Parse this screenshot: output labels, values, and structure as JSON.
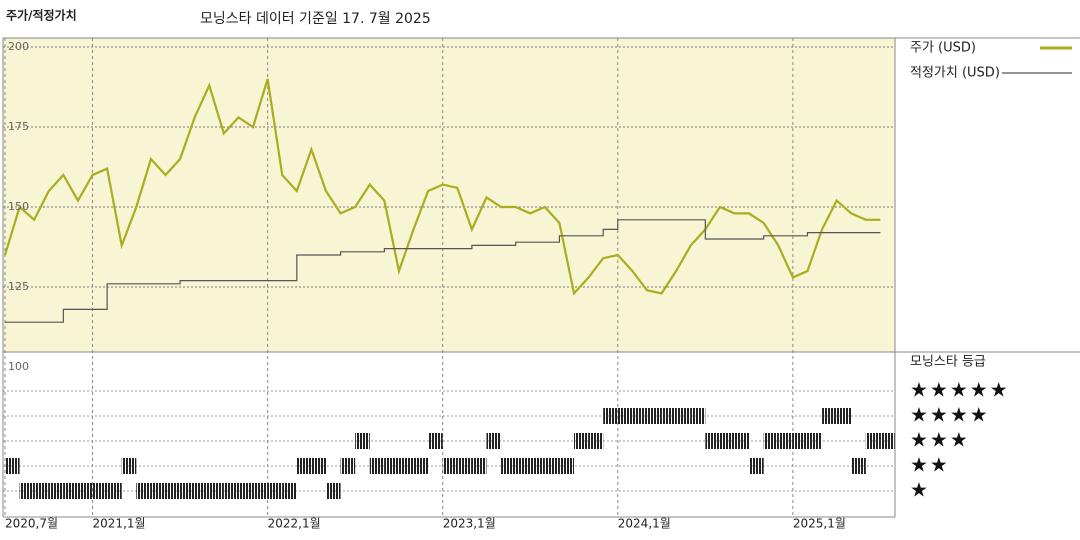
{
  "header": {
    "title": "주가/적정가치",
    "subtitle": "모닝스타 데이터 기준일 17. 7월 2025"
  },
  "chart_data": {
    "type": "line",
    "x": [
      "2020-07",
      "2020-08",
      "2020-09",
      "2020-10",
      "2020-11",
      "2020-12",
      "2021-01",
      "2021-02",
      "2021-03",
      "2021-04",
      "2021-05",
      "2021-06",
      "2021-07",
      "2021-08",
      "2021-09",
      "2021-10",
      "2021-11",
      "2021-12",
      "2022-01",
      "2022-02",
      "2022-03",
      "2022-04",
      "2022-05",
      "2022-06",
      "2022-07",
      "2022-08",
      "2022-09",
      "2022-10",
      "2022-11",
      "2022-12",
      "2023-01",
      "2023-02",
      "2023-03",
      "2023-04",
      "2023-05",
      "2023-06",
      "2023-07",
      "2023-08",
      "2023-09",
      "2023-10",
      "2023-11",
      "2023-12",
      "2024-01",
      "2024-02",
      "2024-03",
      "2024-04",
      "2024-05",
      "2024-06",
      "2024-07",
      "2024-08",
      "2024-09",
      "2024-10",
      "2024-11",
      "2024-12",
      "2025-01",
      "2025-02",
      "2025-03",
      "2025-04",
      "2025-05",
      "2025-06",
      "2025-07"
    ],
    "xlim": [
      "2020-07",
      "2025-08"
    ],
    "xticks": [
      {
        "value": "2020-07",
        "label": "2020,7월"
      },
      {
        "value": "2021-01",
        "label": "2021,1월"
      },
      {
        "value": "2022-01",
        "label": "2022,1월"
      },
      {
        "value": "2023-01",
        "label": "2023,1월"
      },
      {
        "value": "2024-01",
        "label": "2024,1월"
      },
      {
        "value": "2025-01",
        "label": "2025,1월"
      }
    ],
    "ylim": [
      100,
      203
    ],
    "yticks": [
      100,
      125,
      150,
      175,
      200
    ],
    "grid": true,
    "legend": "right",
    "series": [
      {
        "name": "주가 (USD)",
        "color": "#a9ad1f",
        "values": [
          135,
          150,
          146,
          155,
          160,
          152,
          160,
          162,
          138,
          150,
          165,
          160,
          165,
          178,
          188,
          173,
          178,
          175,
          190,
          160,
          155,
          168,
          155,
          148,
          150,
          157,
          152,
          130,
          143,
          155,
          157,
          156,
          143,
          153,
          150,
          150,
          148,
          150,
          145,
          123,
          128,
          134,
          135,
          130,
          124,
          123,
          130,
          138,
          143,
          150,
          148,
          148,
          145,
          138,
          128,
          130,
          143,
          152,
          148,
          146,
          146
        ]
      },
      {
        "name": "적정가치 (USD)",
        "color": "#555555",
        "step": true,
        "values": [
          114,
          114,
          114,
          114,
          118,
          118,
          118,
          126,
          126,
          126,
          126,
          126,
          127,
          127,
          127,
          127,
          127,
          127,
          127,
          127,
          135,
          135,
          135,
          136,
          136,
          136,
          137,
          137,
          137,
          137,
          137,
          137,
          138,
          138,
          138,
          139,
          139,
          139,
          141,
          141,
          141,
          143,
          146,
          146,
          146,
          146,
          146,
          146,
          140,
          140,
          140,
          140,
          141,
          141,
          141,
          142,
          142,
          142,
          142,
          142,
          142
        ]
      }
    ],
    "ratings": {
      "title": "모닝스타 등급",
      "color": "#222222",
      "labels": [
        "★",
        "★★",
        "★★★",
        "★★★★",
        "★★★★★"
      ],
      "values": [
        2,
        1,
        1,
        1,
        1,
        1,
        1,
        1,
        2,
        1,
        1,
        1,
        1,
        1,
        1,
        1,
        1,
        1,
        1,
        1,
        2,
        2,
        1,
        2,
        3,
        2,
        2,
        2,
        2,
        3,
        2,
        2,
        2,
        3,
        2,
        2,
        2,
        2,
        2,
        3,
        3,
        4,
        4,
        4,
        4,
        4,
        4,
        4,
        3,
        3,
        3,
        2,
        3,
        3,
        3,
        3,
        4,
        4,
        2,
        3,
        3
      ]
    }
  }
}
